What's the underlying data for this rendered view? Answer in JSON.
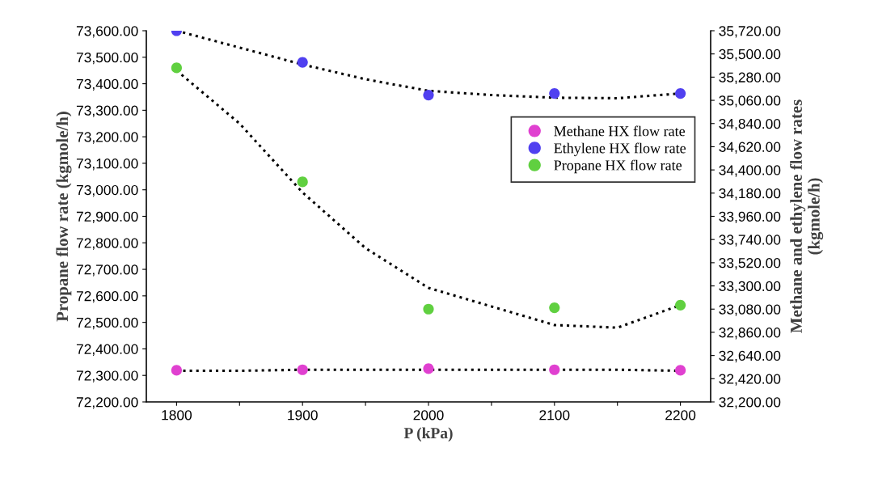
{
  "chart_data": {
    "type": "scatter",
    "xlabel": "P (kPa)",
    "ylabel": "Propane flow rate (kgmole/h)",
    "y2label": "Methane and ethylene flow rates\n(kgmole/h)",
    "x": [
      1800,
      1900,
      2000,
      2100,
      2200
    ],
    "xlim": [
      1776,
      2224
    ],
    "xticks": [
      1800,
      {
        "value": 1850,
        "label": null
      },
      1900,
      {
        "value": 1950,
        "label": null
      },
      2000,
      {
        "value": 2050,
        "label": null
      },
      2100,
      {
        "value": 2150,
        "label": null
      },
      2200
    ],
    "ylim": [
      72200,
      73600
    ],
    "yticks": [
      {
        "value": 72200,
        "label": "72,200.00"
      },
      {
        "value": 72300,
        "label": "72,300.00"
      },
      {
        "value": 72400,
        "label": "72,400.00"
      },
      {
        "value": 72500,
        "label": "72,500.00"
      },
      {
        "value": 72600,
        "label": "72,600.00"
      },
      {
        "value": 72700,
        "label": "72,700.00"
      },
      {
        "value": 72800,
        "label": "72,800.00"
      },
      {
        "value": 72900,
        "label": "72,900.00"
      },
      {
        "value": 73000,
        "label": "73,000.00"
      },
      {
        "value": 73100,
        "label": "73,100.00"
      },
      {
        "value": 73200,
        "label": "73,200.00"
      },
      {
        "value": 73300,
        "label": "73,300.00"
      },
      {
        "value": 73400,
        "label": "73,400.00"
      },
      {
        "value": 73500,
        "label": "73,500.00"
      },
      {
        "value": 73600,
        "label": "73,600.00"
      }
    ],
    "y2lim": [
      32200,
      35720
    ],
    "y2ticks": [
      {
        "value": 32200,
        "label": "32,200.00"
      },
      {
        "value": 32420,
        "label": "32,420.00"
      },
      {
        "value": 32640,
        "label": "32,640.00"
      },
      {
        "value": 32860,
        "label": "32,860.00"
      },
      {
        "value": 33080,
        "label": "33,080.00"
      },
      {
        "value": 33300,
        "label": "33,300.00"
      },
      {
        "value": 33520,
        "label": "33,520.00"
      },
      {
        "value": 33740,
        "label": "33,740.00"
      },
      {
        "value": 33960,
        "label": "33,960.00"
      },
      {
        "value": 34180,
        "label": "34,180.00"
      },
      {
        "value": 34400,
        "label": "34,400.00"
      },
      {
        "value": 34620,
        "label": "34,620.00"
      },
      {
        "value": 34840,
        "label": "34,840.00"
      },
      {
        "value": 35060,
        "label": "35,060.00"
      },
      {
        "value": 35280,
        "label": "35,280.00"
      },
      {
        "value": 35500,
        "label": "35,500.00"
      },
      {
        "value": 35720,
        "label": "35,720.00"
      }
    ],
    "grid": false,
    "legend": "right",
    "series": [
      {
        "type": "line",
        "axis": "y2",
        "color": "#000000",
        "line_style": "dotted",
        "marker": "none",
        "x": [
          1800,
          1850,
          1900,
          1950,
          2000,
          2050,
          2100,
          2150,
          2200
        ],
        "values": [
          32495,
          32495,
          32505,
          32505,
          32505,
          32505,
          32505,
          32505,
          32495
        ]
      },
      {
        "type": "line",
        "axis": "y2",
        "color": "#000000",
        "line_style": "dotted",
        "marker": "none",
        "x": [
          1800,
          1850,
          1900,
          1950,
          2000,
          2050,
          2100,
          2150,
          2200
        ],
        "values": [
          35720,
          35560,
          35400,
          35260,
          35150,
          35110,
          35085,
          35080,
          35125
        ]
      },
      {
        "type": "line",
        "color": "#000000",
        "line_style": "dotted",
        "marker": "none",
        "x": [
          1800,
          1850,
          1900,
          1950,
          2000,
          2050,
          2100,
          2150,
          2200
        ],
        "values": [
          73450,
          73250,
          72990,
          72780,
          72630,
          72560,
          72490,
          72480,
          72565
        ]
      },
      {
        "name": "Methane HX flow rate",
        "axis": "y2",
        "color": "#e040d0",
        "marker": "circle",
        "values": [
          32500,
          32505,
          32515,
          32505,
          32500
        ]
      },
      {
        "name": "Ethylene HX flow rate",
        "axis": "y2",
        "color": "#5040f0",
        "marker": "circle",
        "values": [
          35720,
          35420,
          35110,
          35125,
          35125
        ]
      },
      {
        "name": "Propane HX flow rate",
        "color": "#60d040",
        "marker": "circle",
        "values": [
          73460,
          73030,
          72550,
          72555,
          72565
        ]
      }
    ]
  }
}
